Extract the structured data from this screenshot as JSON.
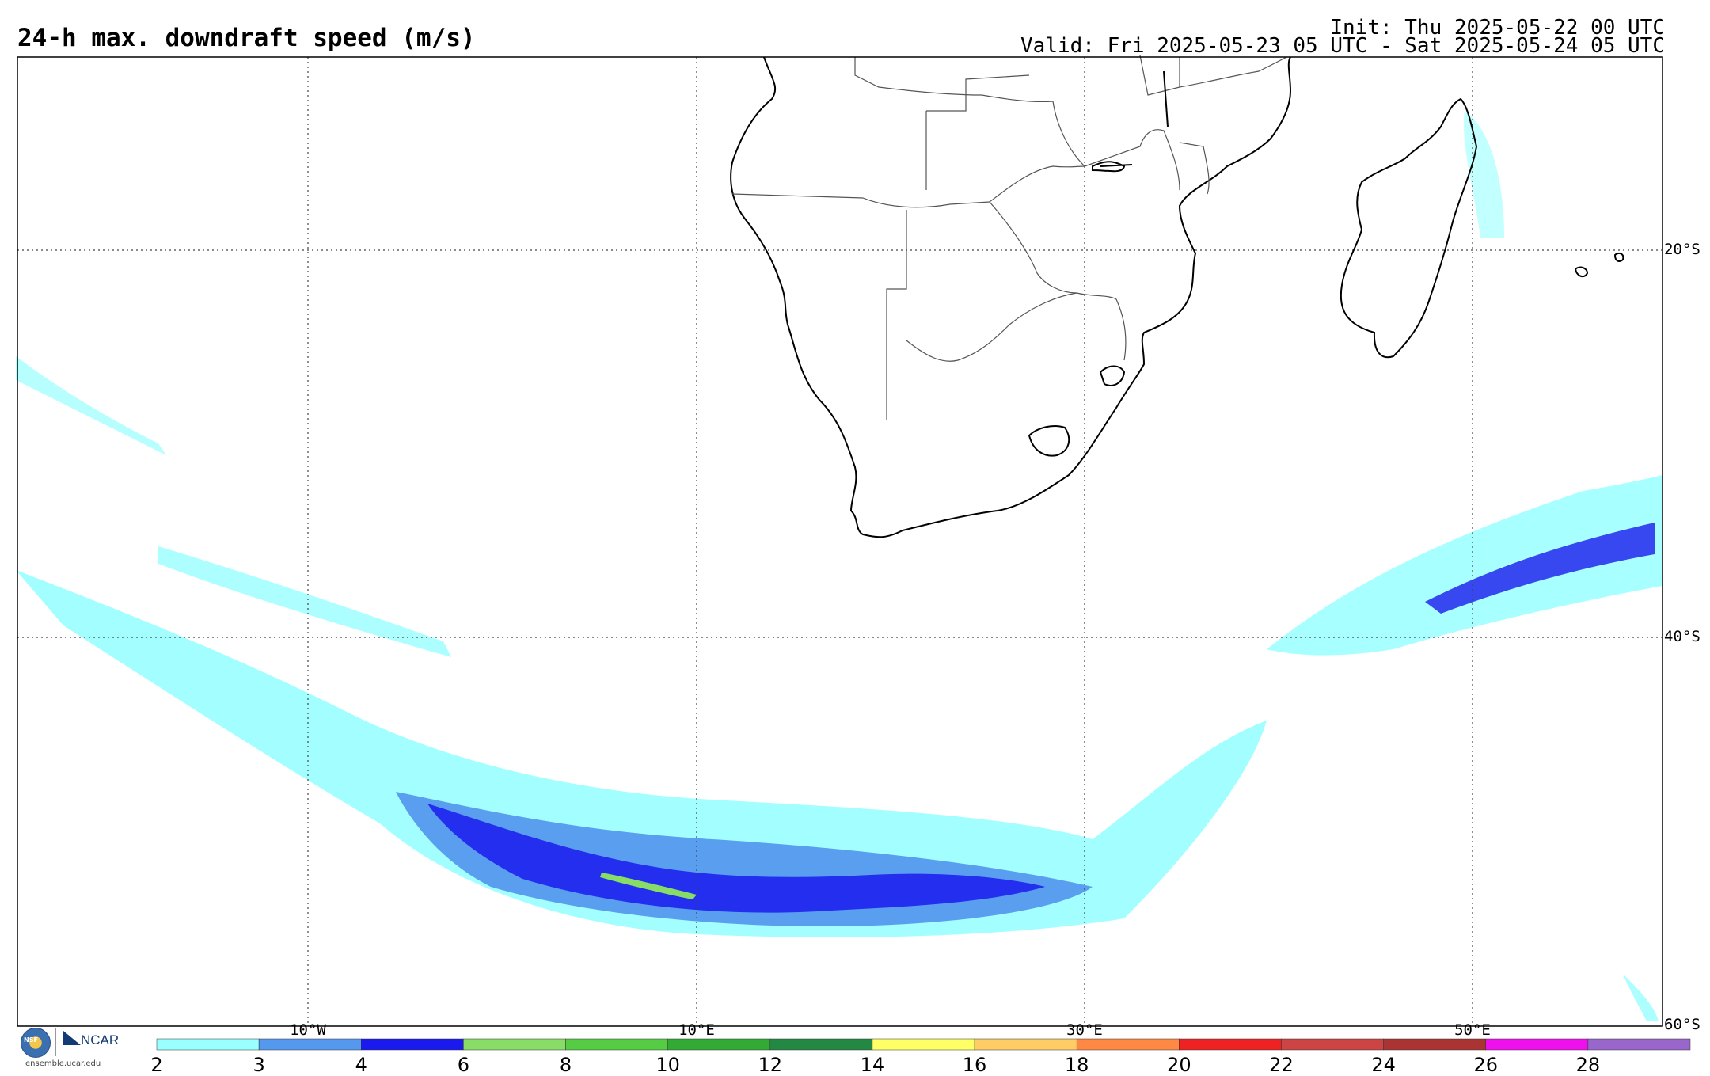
{
  "header": {
    "title": "24-h max. downdraft speed (m/s)",
    "init": "Init: Thu 2025-05-22 00 UTC",
    "valid": "Valid: Fri 2025-05-23 05 UTC - Sat 2025-05-24 05 UTC"
  },
  "grid": {
    "lat_labels": [
      "20°S",
      "40°S",
      "60°S"
    ],
    "lon_labels": [
      "10°W",
      "10°E",
      "30°E",
      "50°E"
    ]
  },
  "colorbar": {
    "ticks": [
      "2",
      "3",
      "4",
      "6",
      "8",
      "10",
      "12",
      "14",
      "16",
      "18",
      "20",
      "22",
      "24",
      "26",
      "28"
    ],
    "colors": [
      "#99ffff",
      "#5599ee",
      "#1a1aee",
      "#88dd66",
      "#55cc44",
      "#33aa33",
      "#228844",
      "#ffff66",
      "#ffcc66",
      "#ff8844",
      "#ee2222",
      "#cc4444",
      "#aa3333",
      "#ee11ee",
      "#9966cc"
    ]
  },
  "map": {
    "region": "Southern Africa and South Atlantic / Indian Ocean",
    "field_colors": {
      "light": "#99ffff",
      "medium": "#5599ee",
      "strong": "#1a1aee",
      "peak": "#88dd66"
    },
    "coastline_color": "#000000",
    "border_color": "#555555"
  },
  "branding": {
    "nsf": "NSF",
    "ncar": "NCAR",
    "site": "ensemble.ucar.edu"
  }
}
